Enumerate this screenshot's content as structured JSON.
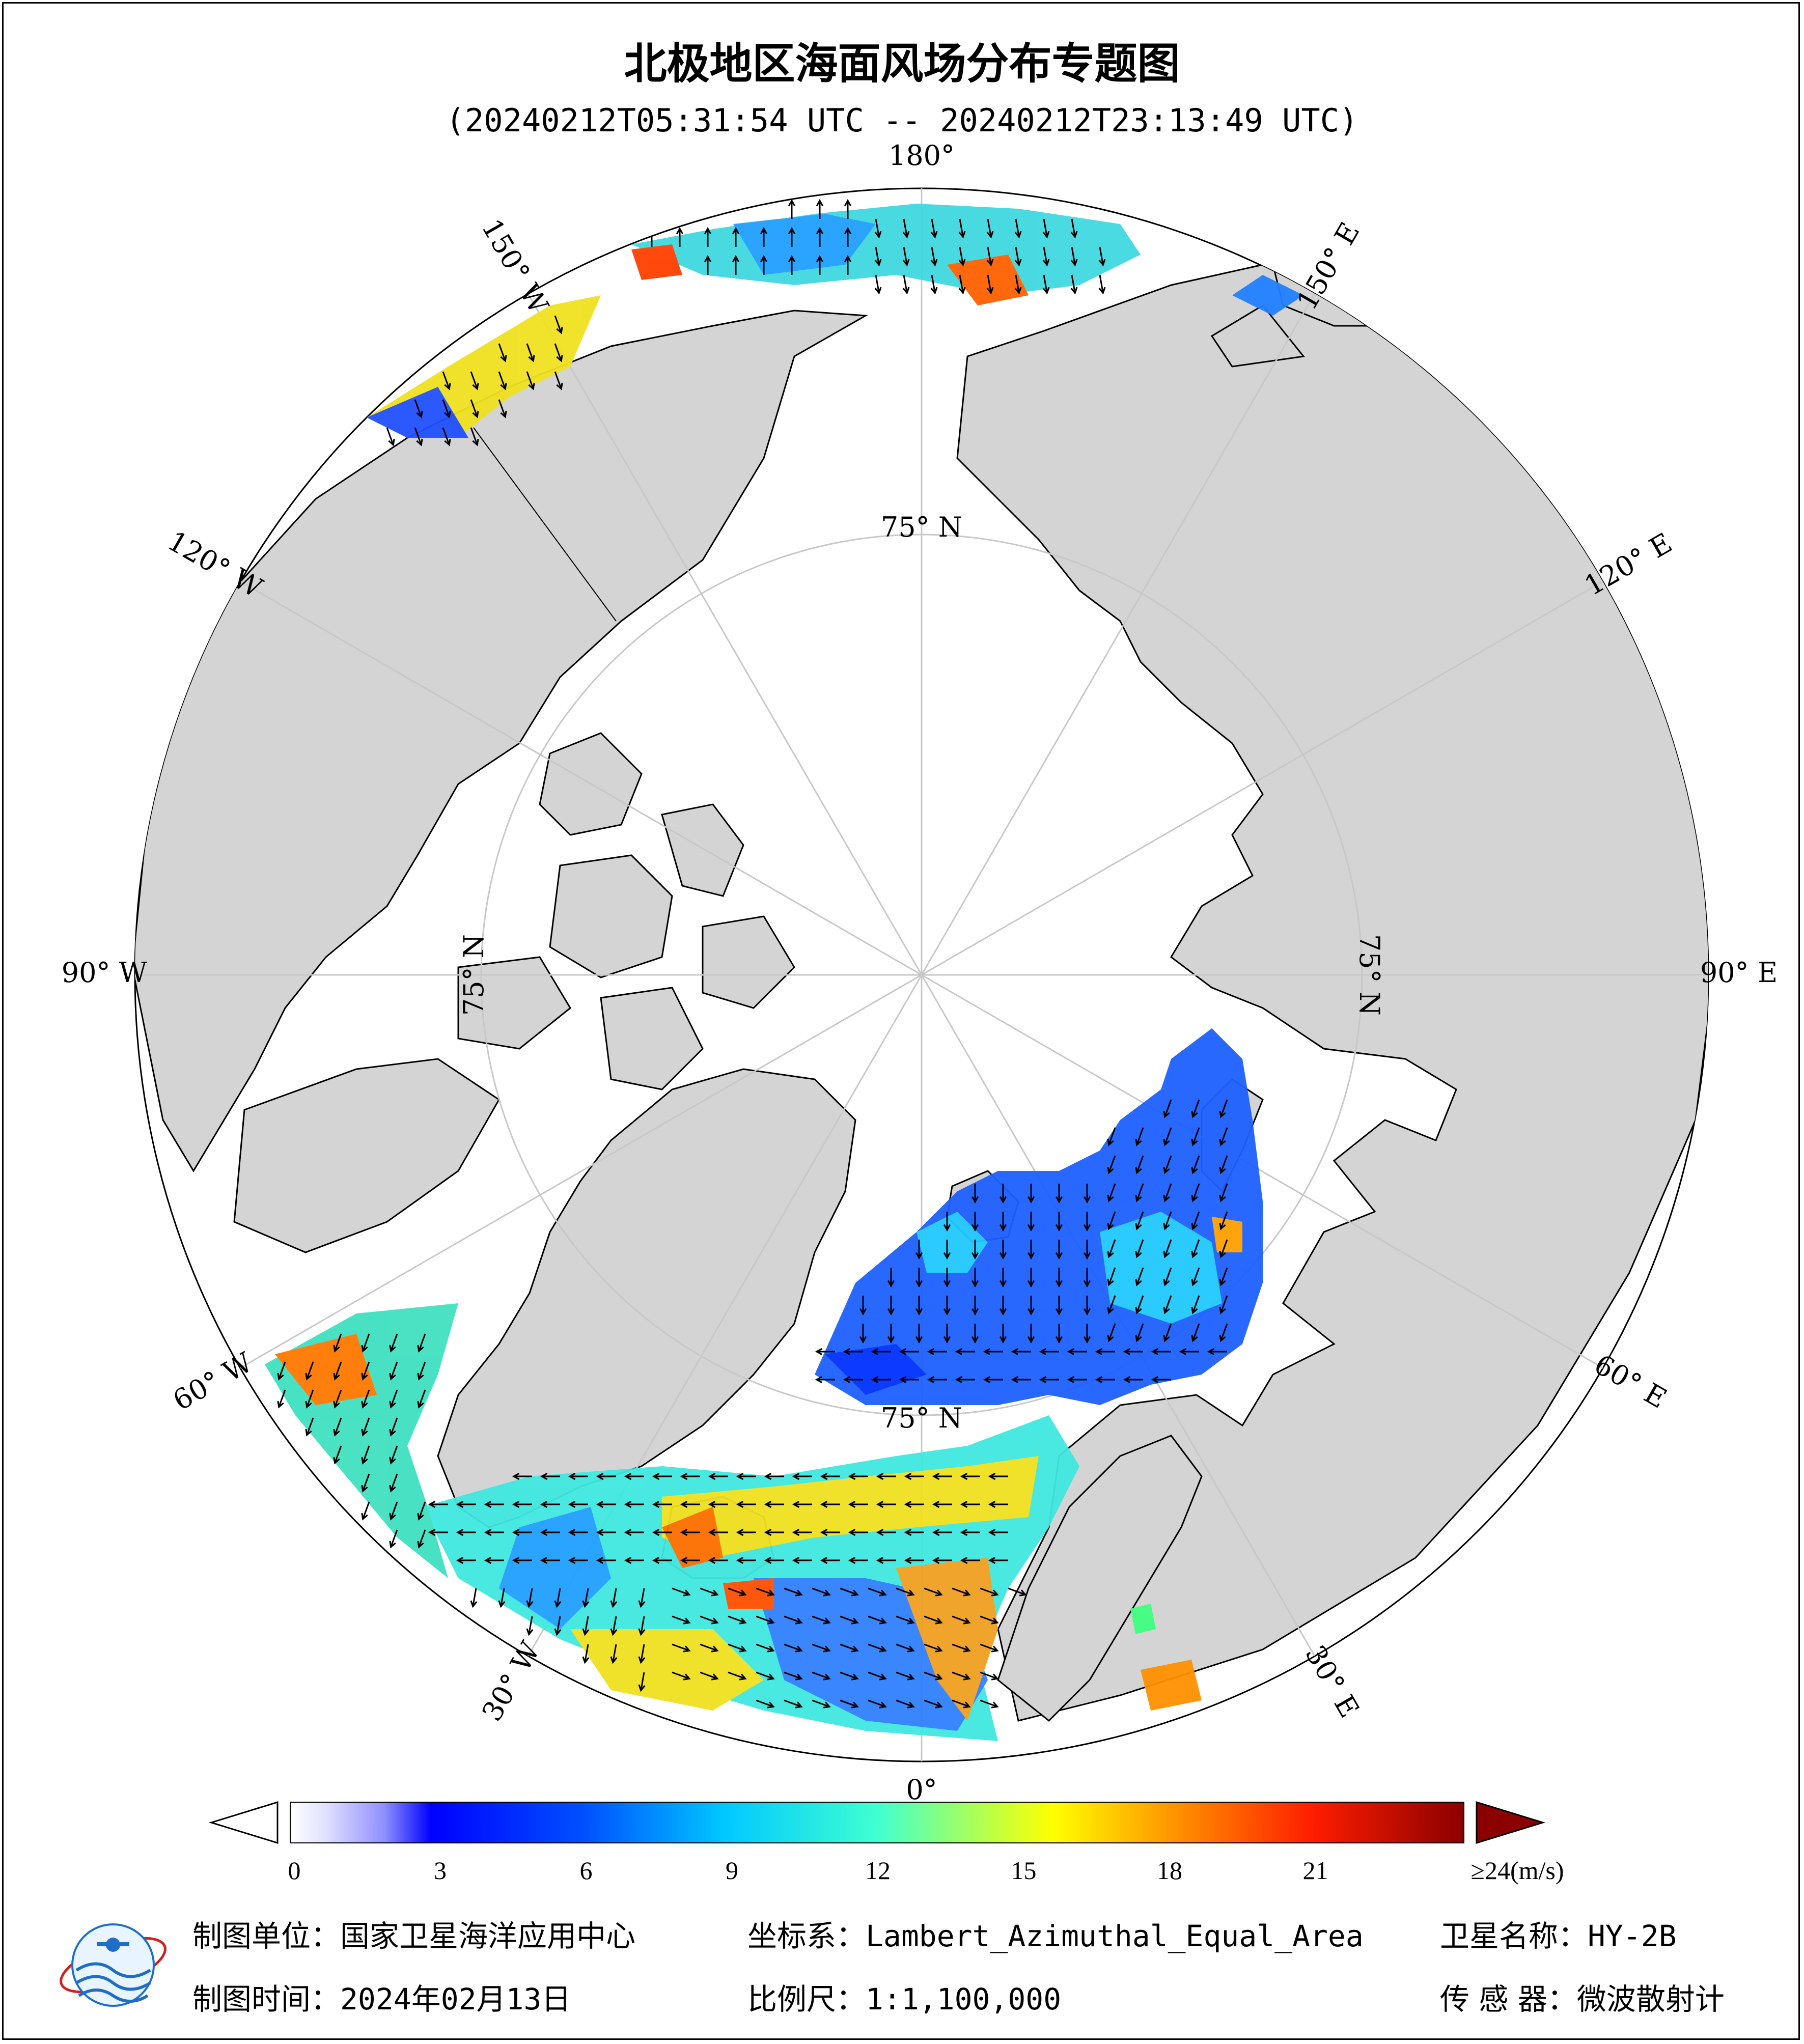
{
  "header": {
    "title": "北极地区海面风场分布专题图",
    "time_range": "(20240212T05:31:54 UTC -- 20240212T23:13:49 UTC)"
  },
  "map": {
    "projection_view": "north-polar",
    "longitude_labels": [
      {
        "lon": 180,
        "text": "180°"
      },
      {
        "lon": 150,
        "text": "150° E"
      },
      {
        "lon": 120,
        "text": "120° E"
      },
      {
        "lon": 90,
        "text": "90° E"
      },
      {
        "lon": 60,
        "text": "60° E"
      },
      {
        "lon": 30,
        "text": "30° E"
      },
      {
        "lon": 0,
        "text": "0°"
      },
      {
        "lon": -30,
        "text": "30° W"
      },
      {
        "lon": -60,
        "text": "60° W"
      },
      {
        "lon": -90,
        "text": "90° W"
      },
      {
        "lon": -120,
        "text": "120° W"
      },
      {
        "lon": -150,
        "text": "150° W"
      }
    ],
    "latitude_labels": [
      {
        "lon": 180,
        "text": "75° N"
      },
      {
        "lon": 90,
        "text": "75° N"
      },
      {
        "lon": 0,
        "text": "75° N"
      },
      {
        "lon": -90,
        "text": "75° N"
      }
    ],
    "colors": {
      "land": "#d4d4d4",
      "ocean_ice": "#ffffff",
      "grid": "#c8c8c8",
      "coast": "#000000"
    }
  },
  "colorbar": {
    "ticks": [
      "0",
      "3",
      "6",
      "9",
      "12",
      "15",
      "18",
      "21",
      "≥24(m/s)"
    ],
    "tick_values": [
      0,
      3,
      6,
      9,
      12,
      15,
      18,
      21,
      24
    ],
    "unit": "m/s",
    "min": 0,
    "max": 24,
    "stops": [
      "#ffffff",
      "#c8c8ff",
      "#0000ff",
      "#0064ff",
      "#00c8ff",
      "#00ffff",
      "#80ff80",
      "#ffff00",
      "#ff9600",
      "#ff0000",
      "#8b0000"
    ],
    "under_color": "#ffffff",
    "over_color": "#8b0000"
  },
  "footer": {
    "unit_label": "制图单位：",
    "unit_value": "国家卫星海洋应用中心",
    "date_label": "制图时间：",
    "date_value": "2024年02月13日",
    "coord_label": "坐标系：",
    "coord_value": "Lambert_Azimuthal_Equal_Area",
    "scale_label": "比例尺：",
    "scale_value": "1:1,100,000",
    "satellite_label": "卫星名称：",
    "satellite_value": "HY-2B",
    "sensor_label": "传 感 器：",
    "sensor_value": "微波散射计"
  }
}
